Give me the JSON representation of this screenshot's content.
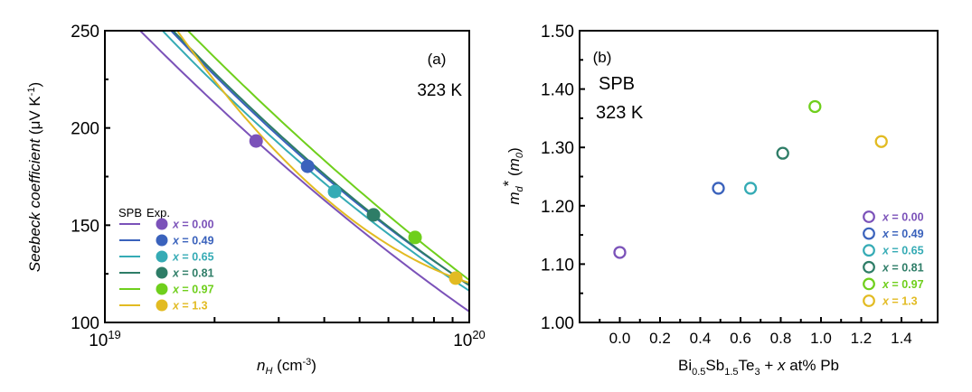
{
  "chart_data": [
    {
      "panel": "(a)",
      "type": "line",
      "title": "",
      "annotations": [
        "(a)",
        "323 K"
      ],
      "xlabel": "n_H (cm^-3)",
      "xlabel_parts": {
        "var": "n",
        "sub": "H",
        "unit": " (cm",
        "sup": "-3",
        "close": ")"
      },
      "ylabel": "Seebeck coefficient (μV K^-1)",
      "ylabel_parts": {
        "italic": "Seebeck coefficient",
        "unit": " (μV K",
        "sup": "-1",
        "close": ")"
      },
      "xscale": "log",
      "xlim": [
        1e+19,
        1e+20
      ],
      "ylim": [
        100,
        250
      ],
      "x_ticks": [
        {
          "base": "10",
          "exp": "19"
        },
        {
          "base": "10",
          "exp": "20"
        }
      ],
      "y_ticks": [
        "100",
        "150",
        "200",
        "250"
      ],
      "grid": false,
      "legend_header": [
        "SPB",
        "Exp."
      ],
      "legend_position": "bottom-left",
      "series": [
        {
          "name": "x = 0.00",
          "label_var": "x",
          "label_val": " = 0.00",
          "color": "#7B52B9",
          "spb_curve": {
            "x": [
              1.25e+19,
              2.6e+19,
              1e+20
            ],
            "y": [
              250,
              193.3,
              105.6
            ]
          },
          "exp": {
            "x": 2.6e+19,
            "y": 193.3
          }
        },
        {
          "name": "x = 0.49",
          "label_var": "x",
          "label_val": " = 0.49",
          "color": "#3A62BC",
          "spb_curve": {
            "x": [
              1.52e+19,
              3.6e+19,
              1e+20
            ],
            "y": [
              250,
              182.5,
              119.3
            ]
          },
          "exp": {
            "x": 3.6e+19,
            "y": 180.3
          }
        },
        {
          "name": "x = 0.65",
          "label_var": "x",
          "label_val": " = 0.65",
          "color": "#35ABB5",
          "spb_curve": {
            "x": [
              1.44e+19,
              4.27e+19,
              1e+20
            ],
            "y": [
              250,
              167.3,
              116.3
            ]
          },
          "exp": {
            "x": 4.27e+19,
            "y": 167.3
          }
        },
        {
          "name": "x = 0.81",
          "label_var": "x",
          "label_val": " = 0.81",
          "color": "#2E7D67",
          "spb_curve": {
            "x": [
              1.54e+19,
              5.46e+19,
              1e+20
            ],
            "y": [
              250,
              155.3,
              119.0
            ]
          },
          "exp": {
            "x": 5.46e+19,
            "y": 155.3
          }
        },
        {
          "name": "x = 0.97",
          "label_var": "x",
          "label_val": " = 0.97",
          "color": "#6FCF1C",
          "spb_curve": {
            "x": [
              1.69e+19,
              7.1e+19,
              1e+20
            ],
            "y": [
              250,
              143.7,
              121.8
            ]
          },
          "exp": {
            "x": 7.1e+19,
            "y": 143.7
          }
        },
        {
          "name": "x = 1.3",
          "label_var": "x",
          "label_val": " = 1.3",
          "color": "#E2BB22",
          "spb_curve": {
            "x": [
              1.58e+19,
              9.18e+19,
              1e+20
            ],
            "y": [
              250,
              122.8,
              120.4
            ]
          },
          "exp": {
            "x": 9.18e+19,
            "y": 122.8
          }
        }
      ]
    },
    {
      "panel": "(b)",
      "type": "scatter",
      "title": "",
      "annotations": [
        "(b)",
        "SPB",
        "323 K"
      ],
      "xlabel": "Bi0.5Sb1.5Te3 + x at% Pb",
      "xlabel_parts": [
        {
          "t": "Bi"
        },
        {
          "t": "0.5",
          "sub": true
        },
        {
          "t": "Sb"
        },
        {
          "t": "1.5",
          "sub": true
        },
        {
          "t": "Te"
        },
        {
          "t": "3",
          "sub": true
        },
        {
          "t": " + "
        },
        {
          "t": "x",
          "italic": true
        },
        {
          "t": " at% Pb"
        }
      ],
      "ylabel": "m_d* (m_0)",
      "ylabel_parts": {
        "var": "m",
        "sub": "d",
        "star": "*",
        "open": " (",
        "var2": "m",
        "sub2": "0",
        "close": ")"
      },
      "xlim": [
        -0.2,
        1.58
      ],
      "ylim": [
        1.0,
        1.5
      ],
      "x_ticks": [
        "0.0",
        "0.2",
        "0.4",
        "0.6",
        "0.8",
        "1.0",
        "1.2",
        "1.4"
      ],
      "y_ticks": [
        "1.00",
        "1.10",
        "1.20",
        "1.30",
        "1.40",
        "1.50"
      ],
      "grid": false,
      "legend_position": "bottom-right",
      "series": [
        {
          "name": "x = 0.00",
          "label_var": "x",
          "label_val": " = 0.00",
          "color": "#7B52B9",
          "x": 0.0,
          "y": 1.12
        },
        {
          "name": "x = 0.49",
          "label_var": "x",
          "label_val": " = 0.49",
          "color": "#3A62BC",
          "x": 0.49,
          "y": 1.23
        },
        {
          "name": "x = 0.65",
          "label_var": "x",
          "label_val": " = 0.65",
          "color": "#35ABB5",
          "x": 0.65,
          "y": 1.23
        },
        {
          "name": "x = 0.81",
          "label_var": "x",
          "label_val": " = 0.81",
          "color": "#2E7D67",
          "x": 0.81,
          "y": 1.29
        },
        {
          "name": "x = 0.97",
          "label_var": "x",
          "label_val": " = 0.97",
          "color": "#6FCF1C",
          "x": 0.97,
          "y": 1.37
        },
        {
          "name": "x = 1.3",
          "label_var": "x",
          "label_val": " = 1.3",
          "color": "#E2BB22",
          "x": 1.3,
          "y": 1.31
        }
      ]
    }
  ]
}
